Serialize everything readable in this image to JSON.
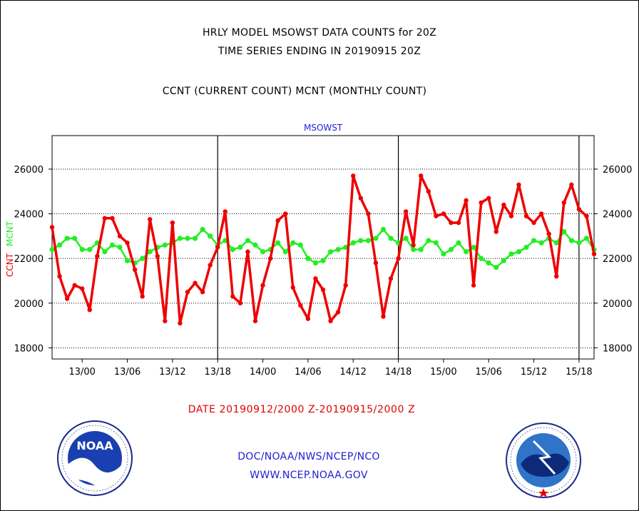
{
  "header": {
    "title_line1": "HRLY MODEL MSOWST DATA COUNTS for 20Z",
    "title_line2": "TIME SERIES ENDING IN 20190915 20Z",
    "subtitle": "CCNT (CURRENT COUNT) MCNT (MONTHLY COUNT)"
  },
  "footer": {
    "date_range": "DATE 20190912/2000 Z-20190915/2000 Z",
    "org": "DOC/NOAA/NWS/NCEP/NCO",
    "url": "WWW.NCEP.NOAA.GOV"
  },
  "logos": {
    "noaa_text": "NOAA",
    "noaa_ring": "NATIONAL OCEANIC AND ATMOSPHERIC ADMINISTRATION · U.S. DEPARTMENT OF COMMERCE",
    "nws_ring": "NATIONAL WEATHER SERVICE"
  },
  "colors": {
    "ccnt": "#ee0000",
    "mcnt": "#22ee22",
    "axis": "#000000",
    "label_blue": "#1f1fd0"
  },
  "chart_data": {
    "type": "line",
    "title": "MSOWST",
    "ylabel_ccnt": "CCNT",
    "ylabel_mcnt": "MCNT",
    "ylim": [
      17500,
      27500
    ],
    "yticks": [
      18000,
      20000,
      22000,
      24000,
      26000
    ],
    "grid": true,
    "x_unit": "hour",
    "xticks": [
      {
        "hour": 4,
        "label": "13/00"
      },
      {
        "hour": 10,
        "label": "13/06"
      },
      {
        "hour": 16,
        "label": "13/12"
      },
      {
        "hour": 22,
        "label": "13/18"
      },
      {
        "hour": 28,
        "label": "14/00"
      },
      {
        "hour": 34,
        "label": "14/06"
      },
      {
        "hour": 40,
        "label": "14/12"
      },
      {
        "hour": 46,
        "label": "14/18"
      },
      {
        "hour": 52,
        "label": "15/00"
      },
      {
        "hour": 58,
        "label": "15/06"
      },
      {
        "hour": 64,
        "label": "15/12"
      },
      {
        "hour": 70,
        "label": "15/18"
      }
    ],
    "xlim": [
      0,
      72
    ],
    "day_dividers": [
      22,
      46,
      70
    ],
    "series": [
      {
        "name": "CCNT",
        "values": [
          23400,
          21200,
          20200,
          20800,
          20650,
          19700,
          22100,
          23800,
          23800,
          23000,
          22700,
          21500,
          20300,
          23750,
          22100,
          19200,
          23600,
          19100,
          20500,
          20900,
          20500,
          21700,
          22500,
          24100,
          20300,
          20000,
          22300,
          19200,
          20800,
          22000,
          23700,
          24000,
          20700,
          19900,
          19300,
          21100,
          20600,
          19200,
          19600,
          20800,
          25700,
          24700,
          24000,
          21800,
          19400,
          21100,
          22000,
          24100,
          22600,
          25700,
          25000,
          23900,
          24000,
          23600,
          23600,
          24600,
          20800,
          24500,
          24700,
          23200,
          24400,
          23900,
          25300,
          23900,
          23600,
          24000,
          23100,
          21200,
          24500,
          25300,
          24200,
          23900,
          22200
        ]
      },
      {
        "name": "MCNT",
        "values": [
          22400,
          22600,
          22900,
          22900,
          22400,
          22400,
          22700,
          22300,
          22600,
          22500,
          21900,
          21800,
          22000,
          22300,
          22500,
          22600,
          22700,
          22900,
          22900,
          22900,
          23300,
          23000,
          22600,
          22800,
          22400,
          22500,
          22800,
          22600,
          22300,
          22400,
          22700,
          22300,
          22700,
          22600,
          22000,
          21800,
          21900,
          22300,
          22400,
          22500,
          22700,
          22800,
          22800,
          22900,
          23300,
          22900,
          22700,
          22900,
          22400,
          22400,
          22800,
          22700,
          22200,
          22400,
          22700,
          22300,
          22500,
          22000,
          21800,
          21600,
          21900,
          22200,
          22300,
          22500,
          22800,
          22700,
          22900,
          22700,
          23200,
          22800,
          22700,
          22900,
          22400
        ]
      }
    ]
  }
}
